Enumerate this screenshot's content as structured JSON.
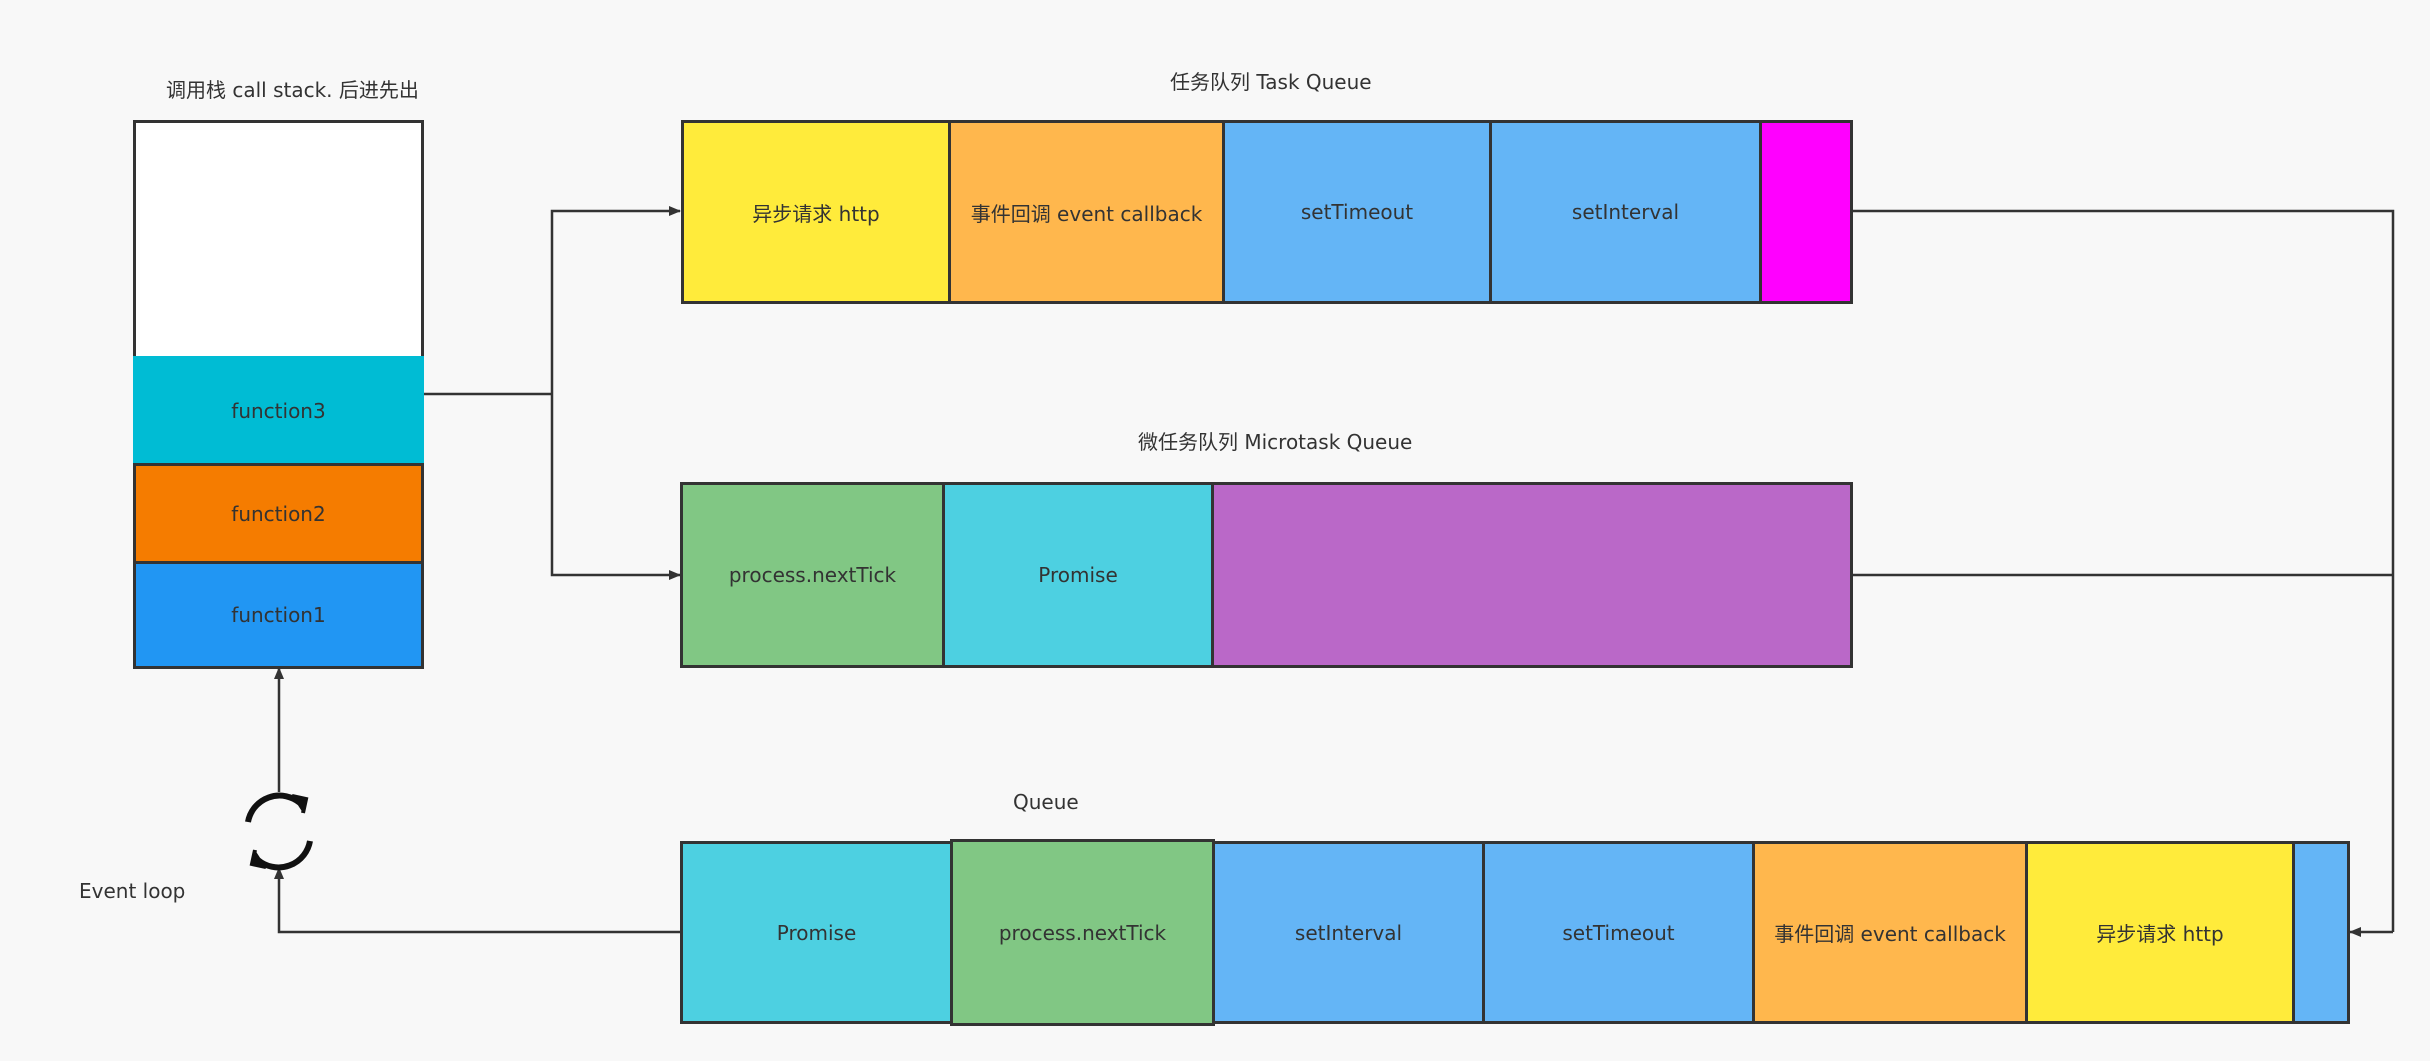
{
  "labels": {
    "call_stack": "调用栈 call stack. 后进先出",
    "task_queue": "任务队列 Task Queue",
    "microtask_queue": "微任务队列 Microtask Queue",
    "queue": "Queue",
    "event_loop": "Event loop"
  },
  "call_stack": {
    "items": [
      "function3",
      "function2",
      "function1"
    ]
  },
  "task_queue": {
    "items": [
      "异步请求 http",
      "事件回调 event callback",
      "setTimeout",
      "setInterval"
    ]
  },
  "microtask_queue": {
    "items": [
      "process.nextTick",
      "Promise"
    ]
  },
  "queue": {
    "items": [
      "Promise",
      "process.nextTick",
      "setInterval",
      "setTimeout",
      "事件回调 event callback",
      "异步请求 http"
    ]
  },
  "colors": {
    "line": "#333333",
    "yellow": "#ffeb3b",
    "orange": "#ffb74d",
    "light_blue": "#64b5f6",
    "magenta": "#ff00ff",
    "green": "#81c784",
    "cyan": "#4dd0e1",
    "purple": "#ba68c8",
    "teal": "#00bcd4",
    "deep_orange": "#f57c00",
    "blue": "#2196f3"
  }
}
